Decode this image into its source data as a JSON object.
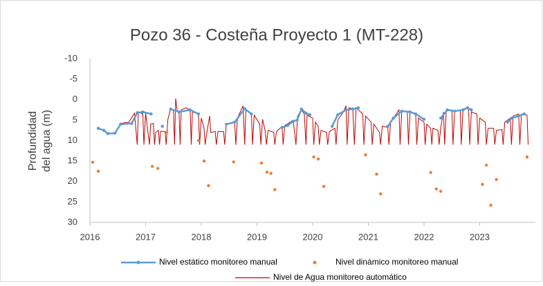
{
  "chart_data": {
    "type": "line",
    "title": "Pozo 36 - Costeña Proyecto 1 (MT-228)",
    "ylabel": [
      "Profundidad",
      "del agua (m)"
    ],
    "xlim": [
      2016,
      2024
    ],
    "xticks": [
      2016,
      2017,
      2018,
      2019,
      2020,
      2021,
      2022,
      2023
    ],
    "ylim": [
      -10,
      30
    ],
    "yticks": [
      -10,
      -5,
      0,
      5,
      10,
      15,
      20,
      25,
      30
    ],
    "yreverse": true,
    "grid": false,
    "legend": "bottom",
    "series": [
      {
        "name": "Nivel estático monitoreo manual",
        "color": "#5b9bd5",
        "kind": "line-markers",
        "x": [
          2016.15,
          2016.25,
          2016.32,
          2016.45,
          2016.55,
          2016.75,
          2016.85,
          2016.95,
          2017.1,
          null,
          2017.3,
          null,
          2017.45,
          2017.6,
          2017.8,
          2017.95,
          null,
          2018.45,
          2018.6,
          2018.78,
          2018.9,
          null,
          2019.45,
          2019.55,
          2019.65,
          2019.72,
          2019.8,
          2019.88,
          2019.95,
          null,
          2020.35,
          2020.45,
          2020.6,
          2020.72,
          2020.82,
          null,
          2021.35,
          2021.45,
          2021.6,
          2021.75,
          2021.85,
          2022.0,
          null,
          2022.3,
          2022.42,
          2022.55,
          2022.7,
          2022.78,
          2022.85,
          null,
          2023.5,
          2023.58,
          2023.7,
          2023.8
        ],
        "values": [
          7,
          7.5,
          8.3,
          8.2,
          6,
          5.8,
          3.2,
          3,
          3.5,
          null,
          6.5,
          null,
          2.3,
          3,
          2.5,
          3.5,
          null,
          6,
          5.5,
          2.2,
          3.5,
          null,
          6.8,
          6.3,
          5.3,
          5,
          2.3,
          3.3,
          3.7,
          null,
          6.5,
          3.7,
          2.5,
          2.3,
          2,
          null,
          6.5,
          4.5,
          2.8,
          3,
          3.5,
          4.8,
          null,
          4.5,
          2.5,
          2.8,
          2.5,
          2,
          2.5,
          null,
          5.5,
          4.5,
          4,
          3.5
        ]
      },
      {
        "name": "Nivel dinámico monitoreo manual",
        "color": "#ed7d31",
        "kind": "scatter",
        "x": [
          2016.05,
          2016.15,
          2017.12,
          2017.22,
          2017.38,
          2017.95,
          2018.05,
          2018.13,
          2018.58,
          2019.08,
          2019.18,
          2019.25,
          2019.32,
          2020.02,
          2020.1,
          2020.2,
          2020.95,
          2021.15,
          2021.22,
          2022.12,
          2022.22,
          2022.3,
          2023.05,
          2023.12,
          2023.2,
          2023.3,
          2023.85
        ],
        "values": [
          15.3,
          17.5,
          16.3,
          16.8,
          8,
          10,
          15,
          21,
          15.2,
          15.5,
          17.7,
          18,
          22,
          14,
          14.5,
          21.2,
          13.5,
          18.2,
          23,
          17.8,
          21.8,
          22.4,
          20.7,
          16,
          25.8,
          19.5,
          14
        ]
      },
      {
        "name": "Nivel de Agua monitoreo automático",
        "color": "#c00000",
        "kind": "line",
        "x": [
          2016.55,
          2016.7,
          2016.8,
          2016.85,
          2016.87,
          2016.95,
          2016.97,
          2017.0,
          2017.07,
          2017.09,
          2017.14,
          2017.16,
          2017.18,
          2017.23,
          2017.25,
          2017.27,
          2017.35,
          2017.37,
          2017.4,
          2017.45,
          2017.5,
          2017.52,
          2017.54,
          2017.57,
          2017.6,
          2017.62,
          2017.64,
          2017.72,
          2017.8,
          2017.82,
          2017.84,
          2017.95,
          2017.97,
          2018.0,
          2018.05,
          2018.07,
          2018.1,
          2018.15,
          2018.17,
          2018.25,
          2018.27,
          2018.3,
          2018.4,
          2018.42,
          2018.45,
          2018.55,
          2018.6,
          2018.62,
          2018.65,
          2018.75,
          2018.78,
          2018.8,
          2018.9,
          2018.92,
          2018.95,
          2019.05,
          2019.07,
          2019.1,
          2019.15,
          2019.17,
          2019.2,
          2019.3,
          2019.32,
          2019.35,
          2019.45,
          2019.47,
          2019.5,
          2019.6,
          2019.65,
          2019.7,
          2019.73,
          2019.8,
          2019.85,
          2019.88,
          2019.9,
          2020.0,
          2020.02,
          2020.05,
          2020.1,
          2020.12,
          2020.15,
          2020.25,
          2020.27,
          2020.3,
          2020.4,
          2020.42,
          2020.45,
          2020.55,
          2020.6,
          2020.62,
          2020.65,
          2020.72,
          2020.75,
          2020.78,
          2020.9,
          2020.92,
          2020.95,
          2021.05,
          2021.07,
          2021.1,
          2021.2,
          2021.22,
          2021.25,
          2021.35,
          2021.37,
          2021.4,
          2021.5,
          2021.55,
          2021.57,
          2021.6,
          2021.7,
          2021.72,
          2021.75,
          2021.85,
          2021.87,
          2021.9,
          2022.0,
          2022.02,
          2022.05,
          2022.12,
          2022.14,
          2022.16,
          2022.25,
          2022.27,
          2022.3,
          2022.35,
          2022.37,
          2022.4,
          2022.5,
          2022.52,
          2022.55,
          2022.65,
          2022.67,
          2022.7,
          2022.8,
          2022.82,
          2022.85,
          2022.95,
          2022.97,
          2023.0,
          2023.1,
          2023.12,
          2023.15,
          2023.25,
          2023.27,
          2023.3,
          2023.4,
          2023.42,
          2023.45,
          2023.55,
          2023.57,
          2023.6,
          2023.7,
          2023.72,
          2023.75,
          2023.85,
          2023.87
        ],
        "values": [
          5.8,
          5.5,
          3.3,
          11,
          3,
          3.5,
          11,
          3.3,
          11,
          6,
          5.8,
          11,
          8,
          7.5,
          11,
          7.7,
          7.8,
          11,
          4.8,
          2.2,
          2.5,
          11,
          -0.3,
          3,
          3,
          11,
          2.5,
          2,
          2.5,
          11,
          3,
          3.5,
          11,
          4.5,
          7,
          11,
          8,
          4,
          8,
          7.8,
          11,
          7.8,
          7.8,
          11,
          6,
          5.8,
          5.5,
          11,
          4.5,
          1.5,
          11,
          2.5,
          3.5,
          11,
          3.8,
          6,
          11,
          4.8,
          7.8,
          11,
          7.5,
          8,
          11,
          7.8,
          6.5,
          11,
          6.3,
          5.5,
          5,
          11,
          4,
          2.5,
          3.5,
          11,
          3.8,
          4.5,
          11,
          5.5,
          6.5,
          11,
          7.5,
          8,
          11,
          7.8,
          7,
          11,
          5,
          3,
          1.5,
          11,
          2,
          2.2,
          11,
          2,
          3.5,
          11,
          4,
          5.5,
          11,
          6,
          8,
          11,
          6.5,
          6.8,
          11,
          5.5,
          3.5,
          2.5,
          11,
          2.8,
          3,
          11,
          3,
          3.5,
          11,
          4.5,
          5.5,
          11,
          6,
          7,
          11,
          7,
          7.5,
          11,
          6.8,
          3,
          11,
          2.5,
          2.5,
          11,
          2.8,
          2.5,
          11,
          2.3,
          2,
          11,
          3,
          3.5,
          11,
          4.5,
          5.5,
          11,
          7,
          7,
          11,
          7.5,
          7.3,
          11,
          5.5,
          4.5,
          11,
          4,
          3.5,
          11,
          3.5,
          3.8,
          11
        ]
      }
    ]
  }
}
